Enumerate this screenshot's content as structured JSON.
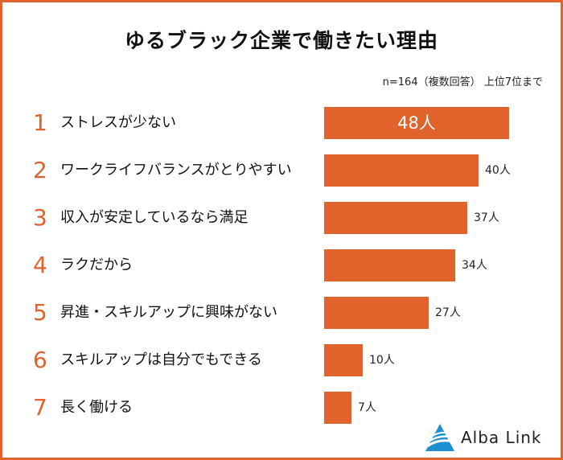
{
  "title": "ゆるブラック企業で働きたい理由",
  "note": "n=164（複数回答） 上位7位まで",
  "brand": {
    "name": "Alba Link",
    "accent": "#e0632c",
    "logo_color": "#1e8fd1"
  },
  "chart_data": {
    "type": "bar",
    "orientation": "horizontal",
    "title": "ゆるブラック企業で働きたい理由",
    "unit": "人",
    "xlim": [
      0,
      50
    ],
    "rows": [
      {
        "rank": "1",
        "label": "ストレスが少ない",
        "value": 48,
        "value_label": "48人"
      },
      {
        "rank": "2",
        "label": "ワークライフバランスがとりやすい",
        "value": 40,
        "value_label": "40人"
      },
      {
        "rank": "3",
        "label": "収入が安定しているなら満足",
        "value": 37,
        "value_label": "37人"
      },
      {
        "rank": "4",
        "label": "ラクだから",
        "value": 34,
        "value_label": "34人"
      },
      {
        "rank": "5",
        "label": "昇進・スキルアップに興味がない",
        "value": 27,
        "value_label": "27人"
      },
      {
        "rank": "6",
        "label": "スキルアップは自分でもできる",
        "value": 10,
        "value_label": "10人"
      },
      {
        "rank": "7",
        "label": "長く働ける",
        "value": 7,
        "value_label": "7人"
      }
    ]
  }
}
